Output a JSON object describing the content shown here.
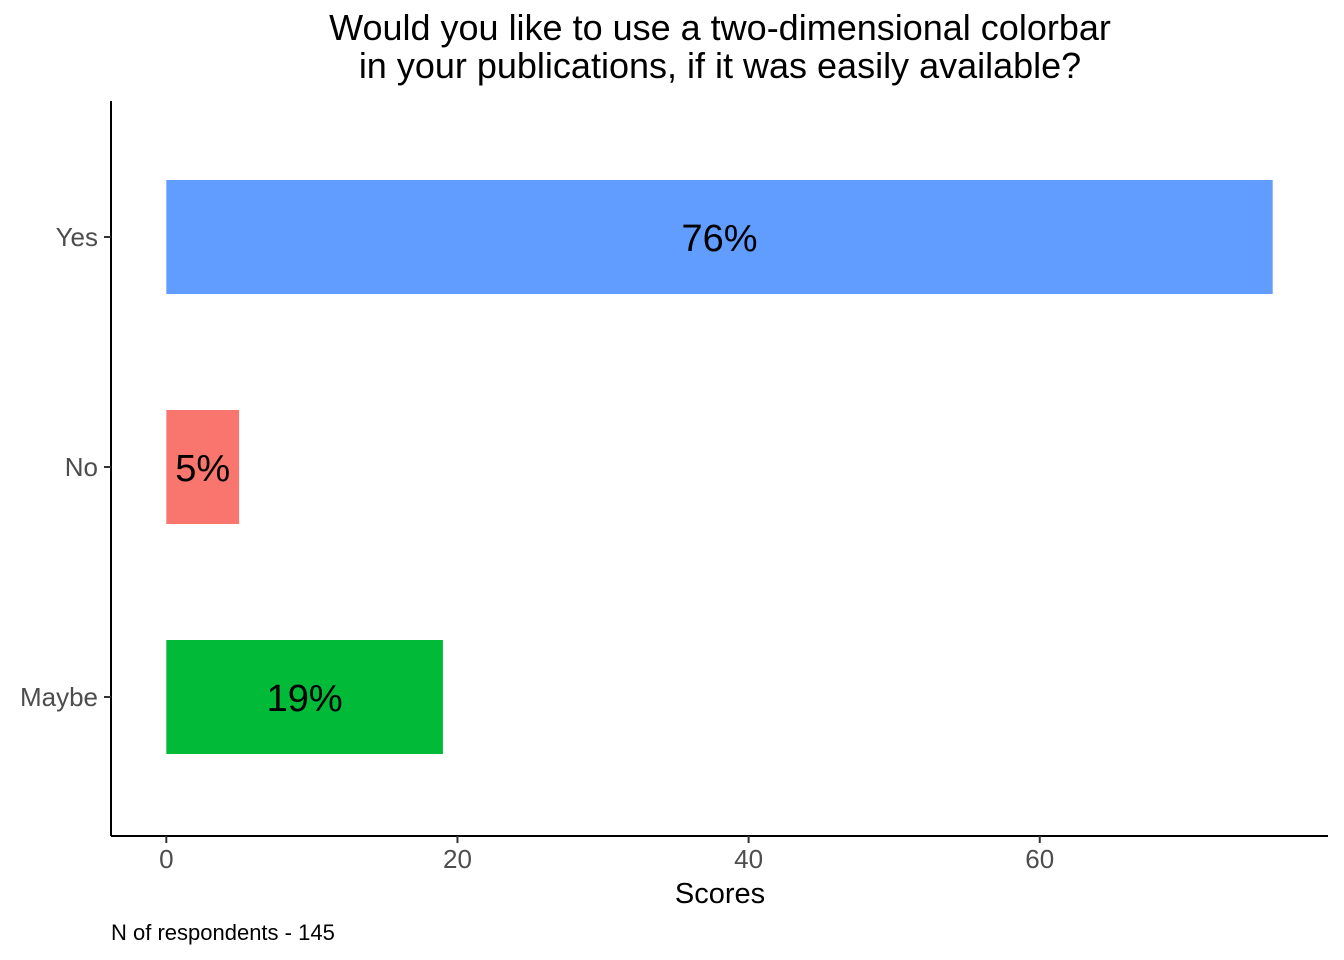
{
  "chart_data": {
    "type": "bar",
    "orientation": "horizontal",
    "title_lines": [
      "Would you like to use a two-dimensional colorbar",
      "in your publications, if it was easily available?"
    ],
    "xlabel": "Scores",
    "ylabel": "",
    "categories": [
      "Yes",
      "No",
      "Maybe"
    ],
    "values": [
      76,
      5,
      19
    ],
    "labels": [
      "76%",
      "5%",
      "19%"
    ],
    "colors": [
      "#619CFF",
      "#F8766D",
      "#00BA38"
    ],
    "xlim": [
      -3.8,
      79.8
    ],
    "xticks": [
      0,
      20,
      40,
      60
    ],
    "xtick_labels": [
      "0",
      "20",
      "40",
      "60"
    ],
    "grid": false,
    "legend": "none",
    "caption": "N of respondents - 145"
  }
}
